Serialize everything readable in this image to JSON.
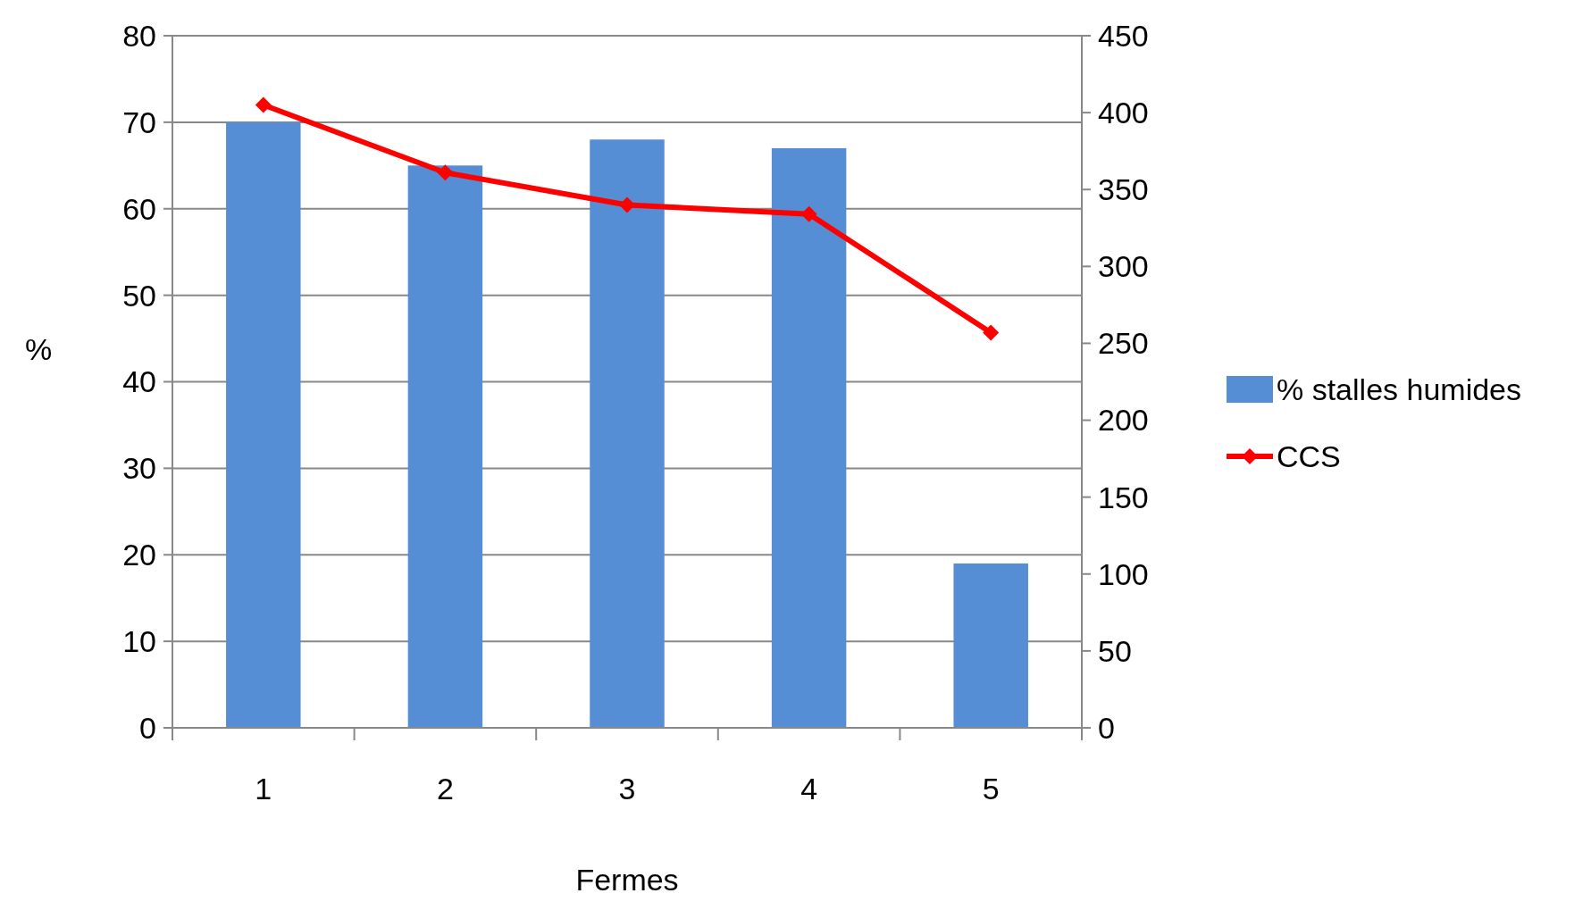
{
  "chart_data": {
    "type": "bar",
    "xlabel": "Fermes",
    "ylabel": "%",
    "categories": [
      "1",
      "2",
      "3",
      "4",
      "5"
    ],
    "series": [
      {
        "name": "% stalles humides",
        "color": "#558ed5",
        "values": [
          70,
          65,
          68,
          67,
          19
        ]
      },
      {
        "name": "CCS",
        "type": "line",
        "axis": "y2",
        "color": "#ff0000",
        "marker": "diamond",
        "values": [
          405,
          361,
          340,
          334,
          257
        ]
      }
    ],
    "ylim": [
      0,
      80
    ],
    "yticks": [
      0,
      10,
      20,
      30,
      40,
      50,
      60,
      70,
      80
    ],
    "y2lim": [
      0,
      450
    ],
    "y2ticks": [
      0,
      50,
      100,
      150,
      200,
      250,
      300,
      350,
      400,
      450
    ],
    "grid": "y",
    "legend": "right"
  }
}
